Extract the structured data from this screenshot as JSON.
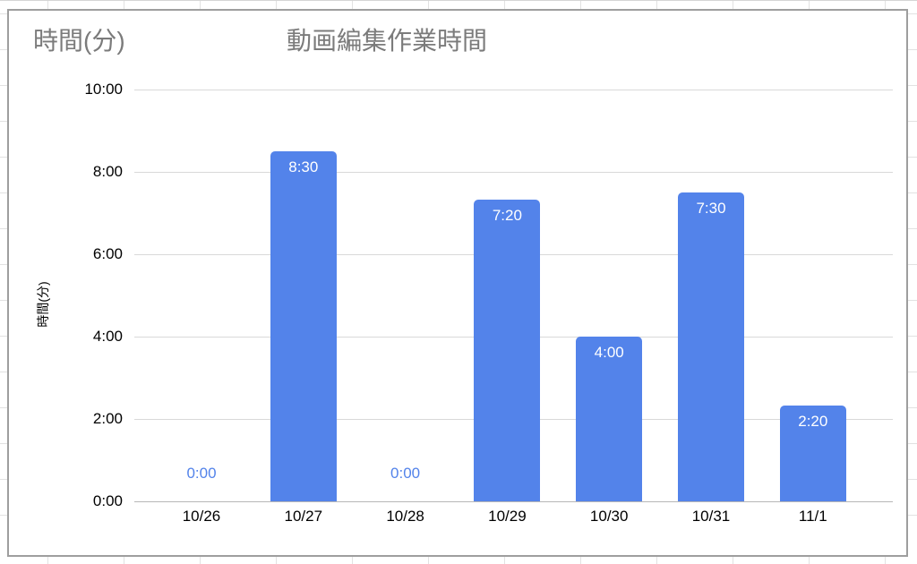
{
  "chart": {
    "corner_label": "時間(分)",
    "title": "動画編集作業時間",
    "y_axis_title": "時間(分)"
  },
  "chart_data": {
    "type": "bar",
    "title": "動画編集作業時間",
    "categories": [
      "10/26",
      "10/27",
      "10/28",
      "10/29",
      "10/30",
      "10/31",
      "11/1"
    ],
    "values": [
      0,
      8.5,
      0,
      7.3333,
      4,
      7.5,
      2.3333
    ],
    "value_labels": [
      "0:00",
      "8:30",
      "0:00",
      "7:20",
      "4:00",
      "7:30",
      "2:20"
    ],
    "xlabel": "",
    "ylabel": "時間(分)",
    "ylim": [
      0,
      10
    ],
    "y_ticks": [
      "0:00",
      "2:00",
      "4:00",
      "6:00",
      "8:00",
      "10:00"
    ],
    "y_tick_values": [
      0,
      2,
      4,
      6,
      8,
      10
    ],
    "grid": true,
    "legend": false,
    "colors": {
      "bar": "#5383ea",
      "title_text": "#7b7b7b",
      "axis_text": "#000000",
      "gridline": "#d9d9d9",
      "baseline": "#b7b7b7",
      "zero_value_label": "#5383ea",
      "bar_value_label": "#ffffff"
    }
  }
}
